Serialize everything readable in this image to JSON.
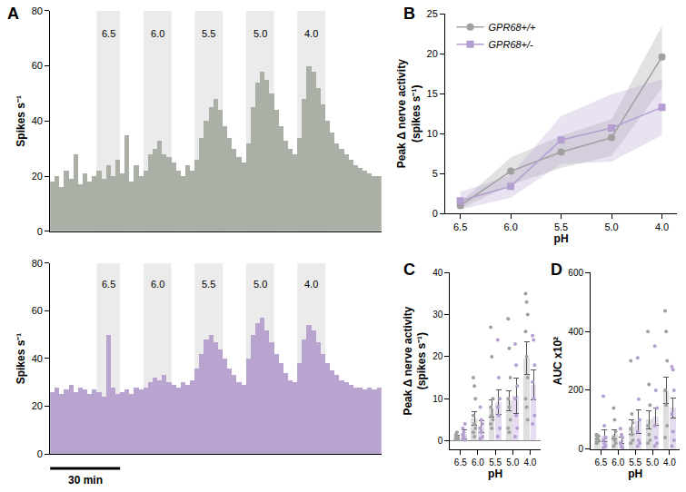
{
  "chart_data": [
    {
      "panel": "A",
      "type": "histogram",
      "color": "#aab0a6",
      "ylabel": "Spikes s⁻¹",
      "bins": [
        0,
        2,
        4,
        6,
        8,
        10,
        12,
        14,
        16,
        18,
        20,
        22,
        24,
        26,
        28,
        30,
        32,
        34,
        36,
        38,
        40,
        42,
        44,
        46,
        48,
        50,
        52,
        54,
        56,
        58,
        60,
        62,
        64,
        66,
        68,
        70,
        72,
        74,
        76,
        78,
        80,
        82,
        84,
        86,
        88,
        90,
        92,
        94,
        96,
        98,
        100,
        102,
        104,
        106,
        108,
        110,
        112,
        114,
        116,
        118,
        120,
        122,
        124,
        126,
        128,
        130,
        132,
        134,
        136,
        138,
        140,
        142
      ],
      "values": [
        18,
        20,
        16,
        22,
        19,
        28,
        17,
        21,
        18,
        20,
        22,
        19,
        24,
        20,
        26,
        21,
        35,
        18,
        24,
        20,
        22,
        28,
        30,
        33,
        28,
        27,
        25,
        22,
        20,
        24,
        22,
        26,
        34,
        40,
        45,
        48,
        44,
        38,
        34,
        30,
        27,
        25,
        32,
        45,
        54,
        58,
        55,
        50,
        44,
        38,
        33,
        30,
        28,
        34,
        48,
        60,
        58,
        52,
        46,
        40,
        36,
        32,
        30,
        28,
        26,
        24,
        23,
        22,
        21,
        20,
        20
      ],
      "xlim": [
        0,
        142
      ],
      "ylim": [
        0,
        80
      ],
      "yticks": [
        0,
        20,
        40,
        60,
        80
      ],
      "tick_labels": "y",
      "stimuli": [
        {
          "label": "6.5",
          "start": 20,
          "end": 30
        },
        {
          "label": "6.0",
          "start": 40,
          "end": 52
        },
        {
          "label": "5.5",
          "start": 62,
          "end": 74
        },
        {
          "label": "5.0",
          "start": 84,
          "end": 96
        },
        {
          "label": "4.0",
          "start": 106,
          "end": 118
        }
      ]
    },
    {
      "type": "histogram",
      "color": "#b9a4cf",
      "ylabel": "Spikes s⁻¹",
      "bins": [
        0,
        2,
        4,
        6,
        8,
        10,
        12,
        14,
        16,
        18,
        20,
        22,
        24,
        26,
        28,
        30,
        32,
        34,
        36,
        38,
        40,
        42,
        44,
        46,
        48,
        50,
        52,
        54,
        56,
        58,
        60,
        62,
        64,
        66,
        68,
        70,
        72,
        74,
        76,
        78,
        80,
        82,
        84,
        86,
        88,
        90,
        92,
        94,
        96,
        98,
        100,
        102,
        104,
        106,
        108,
        110,
        112,
        114,
        116,
        118,
        120,
        122,
        124,
        126,
        128,
        130,
        132,
        134,
        136,
        138,
        140,
        142
      ],
      "values": [
        26,
        28,
        25,
        27,
        29,
        26,
        28,
        27,
        25,
        27,
        26,
        24,
        50,
        28,
        25,
        26,
        27,
        25,
        28,
        27,
        28,
        30,
        32,
        31,
        33,
        30,
        29,
        28,
        30,
        29,
        31,
        36,
        42,
        48,
        50,
        47,
        44,
        40,
        36,
        33,
        30,
        29,
        40,
        50,
        55,
        57,
        52,
        47,
        42,
        38,
        34,
        31,
        30,
        38,
        48,
        54,
        52,
        47,
        42,
        38,
        35,
        33,
        31,
        30,
        29,
        28,
        28,
        27,
        28,
        27,
        28
      ],
      "xlim": [
        0,
        142
      ],
      "ylim": [
        0,
        80
      ],
      "yticks": [
        0,
        20,
        40,
        60,
        80
      ],
      "tick_labels": "y",
      "stimuli": [
        {
          "label": "6.5",
          "start": 20,
          "end": 30
        },
        {
          "label": "6.0",
          "start": 40,
          "end": 52
        },
        {
          "label": "5.5",
          "start": 62,
          "end": 74
        },
        {
          "label": "5.0",
          "start": 84,
          "end": 96
        },
        {
          "label": "4.0",
          "start": 106,
          "end": 118
        }
      ],
      "scale_bar": {
        "length": 30,
        "label": "30 min"
      }
    },
    {
      "panel": "B",
      "type": "line",
      "xlabel": "pH",
      "ylabel": "Peak Δ nerve activity (spikes s⁻¹)",
      "categories": [
        "6.5",
        "6.0",
        "5.5",
        "5.0",
        "4.0"
      ],
      "ylim": [
        0,
        25
      ],
      "yticks": [
        0,
        5,
        10,
        15,
        20,
        25
      ],
      "legend": "top left",
      "series": [
        {
          "name": "GPR68+/+",
          "color": "#a0a0a0",
          "marker": "circle",
          "values": [
            1.0,
            5.3,
            7.7,
            9.5,
            19.6
          ],
          "error": [
            0.4,
            1.7,
            2.0,
            2.3,
            3.9
          ]
        },
        {
          "name": "GPR68+/-",
          "color": "#b49fd0",
          "marker": "square",
          "values": [
            1.6,
            3.4,
            9.2,
            10.7,
            13.3
          ],
          "error": [
            1.1,
            1.4,
            3.0,
            4.2,
            3.5
          ]
        }
      ]
    },
    {
      "panel": "C",
      "type": "bar",
      "xlabel": "pH",
      "ylabel": "Peak Δ nerve activity (spikes s⁻¹)",
      "categories": [
        "6.5",
        "6.0",
        "5.5",
        "5.0",
        "4.0"
      ],
      "ylim": [
        -2,
        40
      ],
      "yticks": [
        0,
        10,
        20,
        30,
        40
      ],
      "series": [
        {
          "color": "#a0a0a0",
          "values": [
            1.0,
            5.3,
            7.7,
            9.5,
            19.6
          ],
          "error": [
            0.4,
            1.7,
            2.0,
            2.3,
            3.9
          ],
          "points": [
            [
              0.5,
              1,
              0.8,
              1.2,
              2,
              0.3,
              1.5,
              0.9
            ],
            [
              15,
              13,
              10,
              6,
              4,
              3,
              2,
              1
            ],
            [
              27,
              20,
              10,
              8,
              6,
              5,
              4,
              3
            ],
            [
              29,
              22,
              15,
              10,
              8,
              5,
              3,
              2
            ],
            [
              35,
              33,
              30,
              26,
              20,
              15,
              10,
              8,
              5
            ]
          ]
        },
        {
          "color": "#b49fd0",
          "values": [
            1.6,
            3.4,
            9.2,
            10.7,
            13.3
          ],
          "error": [
            1.1,
            1.4,
            3.0,
            4.2,
            3.5
          ],
          "points": [
            [
              0.5,
              1,
              4,
              3,
              2,
              0.2,
              1.5
            ],
            [
              8,
              5,
              4,
              3,
              2,
              1,
              0.5
            ],
            [
              24,
              15,
              10,
              8,
              6,
              3,
              1
            ],
            [
              23,
              18,
              13,
              10,
              6,
              3,
              1
            ],
            [
              25,
              24,
              18,
              14,
              10,
              6,
              4
            ]
          ]
        }
      ]
    },
    {
      "panel": "D",
      "type": "bar",
      "xlabel": "pH",
      "ylabel": "AUC x10²",
      "categories": [
        "6.5",
        "6.0",
        "5.5",
        "5.0",
        "4.0"
      ],
      "ylim": [
        0,
        600
      ],
      "yticks": [
        0,
        200,
        400,
        600
      ],
      "series": [
        {
          "color": "#a0a0a0",
          "values": [
            35,
            50,
            75,
            100,
            200
          ],
          "error": [
            8,
            15,
            25,
            30,
            45
          ],
          "points": [
            [
              20,
              25,
              30,
              35,
              40,
              45,
              50
            ],
            [
              140,
              100,
              60,
              40,
              30,
              20,
              10
            ],
            [
              300,
              120,
              90,
              70,
              50,
              30,
              20
            ],
            [
              400,
              220,
              150,
              80,
              50,
              30,
              20
            ],
            [
              470,
              400,
              300,
              200,
              150,
              80,
              40
            ]
          ]
        },
        {
          "color": "#b49fd0",
          "values": [
            45,
            30,
            95,
            110,
            140
          ],
          "error": [
            20,
            10,
            40,
            30,
            35
          ],
          "points": [
            [
              180,
              80,
              40,
              30,
              20,
              10,
              5
            ],
            [
              70,
              50,
              40,
              20,
              10,
              5
            ],
            [
              310,
              170,
              100,
              60,
              30,
              20,
              10
            ],
            [
              350,
              200,
              140,
              80,
              40,
              20,
              10
            ],
            [
              280,
              270,
              200,
              120,
              60,
              30,
              10
            ]
          ]
        }
      ]
    }
  ]
}
